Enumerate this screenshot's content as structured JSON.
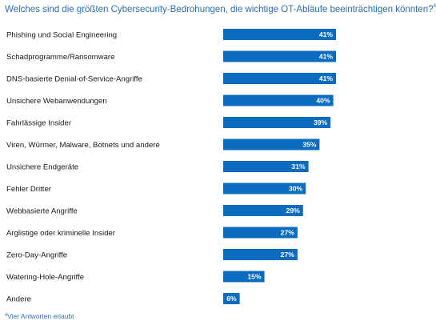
{
  "title": "Welches sind die größten Cybersecurity-Bedrohungen, die wichtige OT-Abläufe beeinträchtigen könnten?",
  "title_footnote_mark": "4",
  "footnote": {
    "mark": "4",
    "text": "Vier Antworten erlaubt"
  },
  "colors": {
    "bar": "#0b6cbf",
    "title": "#2f6fae",
    "label_text": "#1a1a1a",
    "value_text": "#ffffff"
  },
  "chart_data": {
    "type": "bar",
    "orientation": "horizontal",
    "title": "Welches sind die größten Cybersecurity-Bedrohungen, die wichtige OT-Abläufe beeinträchtigen könnten?",
    "xlabel": "",
    "ylabel": "",
    "xlim": [
      0,
      100
    ],
    "grid": false,
    "legend": "none",
    "categories": [
      "Phishing und Social Engineering",
      "Schadprogramme/Ransomware",
      "DNS-basierte Denial-of-Service-Angriffe",
      "Unsichere Webanwendungen",
      "Fahrlässige Insider",
      "Viren, Würmer, Malware, Botnets und andere",
      "Unsichere Endgeräte",
      "Fehler Dritter",
      "Webbasierte Angriffe",
      "Arglistige oder kriminelle Insider",
      "Zero-Day-Angriffe",
      "Watering-Hole-Angriffe",
      "Andere"
    ],
    "values": [
      41,
      41,
      41,
      40,
      39,
      35,
      31,
      30,
      29,
      27,
      27,
      15,
      6
    ],
    "value_labels": [
      "41%",
      "41%",
      "41%",
      "40%",
      "39%",
      "35%",
      "31%",
      "30%",
      "29%",
      "27%",
      "27%",
      "15%",
      "6%"
    ]
  }
}
